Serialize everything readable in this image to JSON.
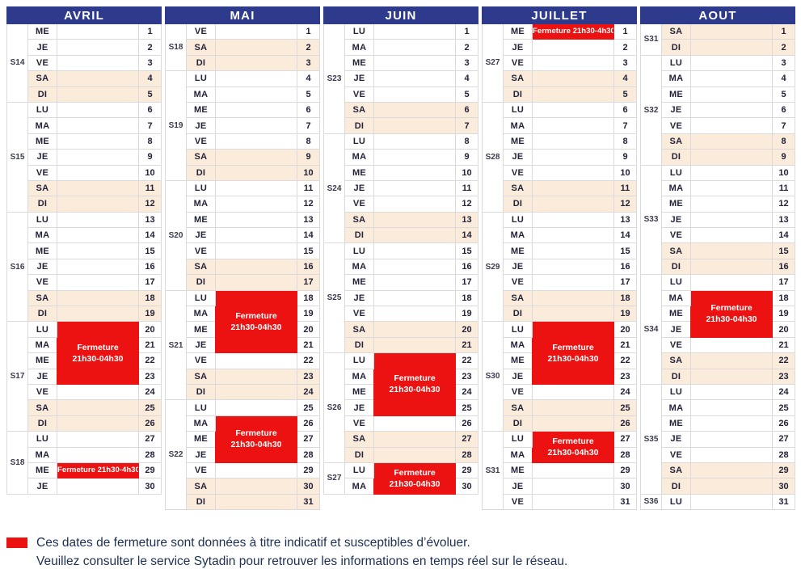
{
  "colors": {
    "header_bg": "#2E3A8C",
    "closure_red": "#EC1212",
    "weekend_bg": "#FBEBDB"
  },
  "months": [
    {
      "name": "AVRIL",
      "weeks": [
        {
          "label": "S14",
          "days": [
            {
              "dow": "ME",
              "num": 1
            },
            {
              "dow": "JE",
              "num": 2
            },
            {
              "dow": "VE",
              "num": 3
            },
            {
              "dow": "SA",
              "num": 4
            },
            {
              "dow": "DI",
              "num": 5
            }
          ]
        },
        {
          "label": "S15",
          "days": [
            {
              "dow": "LU",
              "num": 6
            },
            {
              "dow": "MA",
              "num": 7
            },
            {
              "dow": "ME",
              "num": 8
            },
            {
              "dow": "JE",
              "num": 9
            },
            {
              "dow": "VE",
              "num": 10
            },
            {
              "dow": "SA",
              "num": 11
            },
            {
              "dow": "DI",
              "num": 12
            }
          ]
        },
        {
          "label": "S16",
          "days": [
            {
              "dow": "LU",
              "num": 13
            },
            {
              "dow": "MA",
              "num": 14
            },
            {
              "dow": "ME",
              "num": 15
            },
            {
              "dow": "JE",
              "num": 16
            },
            {
              "dow": "VE",
              "num": 17
            },
            {
              "dow": "SA",
              "num": 18
            },
            {
              "dow": "DI",
              "num": 19
            }
          ]
        },
        {
          "label": "S17",
          "days": [
            {
              "dow": "LU",
              "num": 20
            },
            {
              "dow": "MA",
              "num": 21
            },
            {
              "dow": "ME",
              "num": 22
            },
            {
              "dow": "JE",
              "num": 23
            },
            {
              "dow": "VE",
              "num": 24
            },
            {
              "dow": "SA",
              "num": 25
            },
            {
              "dow": "DI",
              "num": 26
            }
          ]
        },
        {
          "label": "S18",
          "days": [
            {
              "dow": "LU",
              "num": 27
            },
            {
              "dow": "MA",
              "num": 28
            },
            {
              "dow": "ME",
              "num": 29
            },
            {
              "dow": "JE",
              "num": 30
            }
          ]
        }
      ],
      "closures": [
        {
          "start": 20,
          "end": 23,
          "label": "Fermeture\n21h30-04h30"
        },
        {
          "start": 29,
          "end": 29,
          "label": "Fermeture 21h30-4h30"
        }
      ]
    },
    {
      "name": "MAI",
      "weeks": [
        {
          "label": "S18",
          "days": [
            {
              "dow": "VE",
              "num": 1
            },
            {
              "dow": "SA",
              "num": 2
            },
            {
              "dow": "DI",
              "num": 3
            }
          ]
        },
        {
          "label": "S19",
          "days": [
            {
              "dow": "LU",
              "num": 4
            },
            {
              "dow": "MA",
              "num": 5
            },
            {
              "dow": "ME",
              "num": 6
            },
            {
              "dow": "JE",
              "num": 7
            },
            {
              "dow": "VE",
              "num": 8
            },
            {
              "dow": "SA",
              "num": 9
            },
            {
              "dow": "DI",
              "num": 10
            }
          ]
        },
        {
          "label": "S20",
          "days": [
            {
              "dow": "LU",
              "num": 11
            },
            {
              "dow": "MA",
              "num": 12
            },
            {
              "dow": "ME",
              "num": 13
            },
            {
              "dow": "JE",
              "num": 14
            },
            {
              "dow": "VE",
              "num": 15
            },
            {
              "dow": "SA",
              "num": 16
            },
            {
              "dow": "DI",
              "num": 17
            }
          ]
        },
        {
          "label": "S21",
          "days": [
            {
              "dow": "LU",
              "num": 18
            },
            {
              "dow": "MA",
              "num": 19
            },
            {
              "dow": "ME",
              "num": 20
            },
            {
              "dow": "JE",
              "num": 21
            },
            {
              "dow": "VE",
              "num": 22
            },
            {
              "dow": "SA",
              "num": 23
            },
            {
              "dow": "DI",
              "num": 24
            }
          ]
        },
        {
          "label": "S22",
          "days": [
            {
              "dow": "LU",
              "num": 25
            },
            {
              "dow": "MA",
              "num": 26
            },
            {
              "dow": "ME",
              "num": 27
            },
            {
              "dow": "JE",
              "num": 28
            },
            {
              "dow": "VE",
              "num": 29
            },
            {
              "dow": "SA",
              "num": 30
            },
            {
              "dow": "DI",
              "num": 31
            }
          ]
        }
      ],
      "closures": [
        {
          "start": 18,
          "end": 21,
          "label": "Fermeture\n21h30-04h30"
        },
        {
          "start": 26,
          "end": 28,
          "label": "Fermeture\n21h30-04h30"
        }
      ]
    },
    {
      "name": "JUIN",
      "weeks": [
        {
          "label": "S23",
          "days": [
            {
              "dow": "LU",
              "num": 1
            },
            {
              "dow": "MA",
              "num": 2
            },
            {
              "dow": "ME",
              "num": 3
            },
            {
              "dow": "JE",
              "num": 4
            },
            {
              "dow": "VE",
              "num": 5
            },
            {
              "dow": "SA",
              "num": 6
            },
            {
              "dow": "DI",
              "num": 7
            }
          ]
        },
        {
          "label": "S24",
          "days": [
            {
              "dow": "LU",
              "num": 8
            },
            {
              "dow": "MA",
              "num": 9
            },
            {
              "dow": "ME",
              "num": 10
            },
            {
              "dow": "JE",
              "num": 11
            },
            {
              "dow": "VE",
              "num": 12
            },
            {
              "dow": "SA",
              "num": 13
            },
            {
              "dow": "DI",
              "num": 14
            }
          ]
        },
        {
          "label": "S25",
          "days": [
            {
              "dow": "LU",
              "num": 15
            },
            {
              "dow": "MA",
              "num": 16
            },
            {
              "dow": "ME",
              "num": 17
            },
            {
              "dow": "JE",
              "num": 18
            },
            {
              "dow": "VE",
              "num": 19
            },
            {
              "dow": "SA",
              "num": 20
            },
            {
              "dow": "DI",
              "num": 21
            }
          ]
        },
        {
          "label": "S26",
          "days": [
            {
              "dow": "LU",
              "num": 22
            },
            {
              "dow": "MA",
              "num": 23
            },
            {
              "dow": "ME",
              "num": 24
            },
            {
              "dow": "JE",
              "num": 25
            },
            {
              "dow": "VE",
              "num": 26
            },
            {
              "dow": "SA",
              "num": 27
            },
            {
              "dow": "DI",
              "num": 28
            }
          ]
        },
        {
          "label": "S27",
          "days": [
            {
              "dow": "LU",
              "num": 29
            },
            {
              "dow": "MA",
              "num": 30
            }
          ]
        }
      ],
      "closures": [
        {
          "start": 22,
          "end": 25,
          "label": "Fermeture\n21h30-04h30"
        },
        {
          "start": 29,
          "end": 30,
          "label": "Fermeture\n21h30-04h30"
        }
      ]
    },
    {
      "name": "JUILLET",
      "weeks": [
        {
          "label": "S27",
          "days": [
            {
              "dow": "ME",
              "num": 1
            },
            {
              "dow": "JE",
              "num": 2
            },
            {
              "dow": "VE",
              "num": 3
            },
            {
              "dow": "SA",
              "num": 4
            },
            {
              "dow": "DI",
              "num": 5
            }
          ]
        },
        {
          "label": "S28",
          "days": [
            {
              "dow": "LU",
              "num": 6
            },
            {
              "dow": "MA",
              "num": 7
            },
            {
              "dow": "ME",
              "num": 8
            },
            {
              "dow": "JE",
              "num": 9
            },
            {
              "dow": "VE",
              "num": 10
            },
            {
              "dow": "SA",
              "num": 11
            },
            {
              "dow": "DI",
              "num": 12
            }
          ]
        },
        {
          "label": "S29",
          "days": [
            {
              "dow": "LU",
              "num": 13
            },
            {
              "dow": "MA",
              "num": 14
            },
            {
              "dow": "ME",
              "num": 15
            },
            {
              "dow": "JE",
              "num": 16
            },
            {
              "dow": "VE",
              "num": 17
            },
            {
              "dow": "SA",
              "num": 18
            },
            {
              "dow": "DI",
              "num": 19
            }
          ]
        },
        {
          "label": "S30",
          "days": [
            {
              "dow": "LU",
              "num": 20
            },
            {
              "dow": "MA",
              "num": 21
            },
            {
              "dow": "ME",
              "num": 22
            },
            {
              "dow": "JE",
              "num": 23
            },
            {
              "dow": "VE",
              "num": 24
            },
            {
              "dow": "SA",
              "num": 25
            },
            {
              "dow": "DI",
              "num": 26
            }
          ]
        },
        {
          "label": "S31",
          "days": [
            {
              "dow": "LU",
              "num": 27
            },
            {
              "dow": "MA",
              "num": 28
            },
            {
              "dow": "ME",
              "num": 29
            },
            {
              "dow": "JE",
              "num": 30
            },
            {
              "dow": "VE",
              "num": 31
            }
          ]
        }
      ],
      "closures": [
        {
          "start": 1,
          "end": 1,
          "label": "Fermeture 21h30-4h30"
        },
        {
          "start": 20,
          "end": 23,
          "label": "Fermeture\n21h30-04h30"
        },
        {
          "start": 27,
          "end": 28,
          "label": "Fermeture\n21h30-04h30"
        }
      ]
    },
    {
      "name": "AOUT",
      "weeks": [
        {
          "label": "S31",
          "days": [
            {
              "dow": "SA",
              "num": 1
            },
            {
              "dow": "DI",
              "num": 2
            }
          ]
        },
        {
          "label": "S32",
          "days": [
            {
              "dow": "LU",
              "num": 3
            },
            {
              "dow": "MA",
              "num": 4
            },
            {
              "dow": "ME",
              "num": 5
            },
            {
              "dow": "JE",
              "num": 6
            },
            {
              "dow": "VE",
              "num": 7
            },
            {
              "dow": "SA",
              "num": 8
            },
            {
              "dow": "DI",
              "num": 9
            }
          ]
        },
        {
          "label": "S33",
          "days": [
            {
              "dow": "LU",
              "num": 10
            },
            {
              "dow": "MA",
              "num": 11
            },
            {
              "dow": "ME",
              "num": 12
            },
            {
              "dow": "JE",
              "num": 13
            },
            {
              "dow": "VE",
              "num": 14
            },
            {
              "dow": "SA",
              "num": 15
            },
            {
              "dow": "DI",
              "num": 16
            }
          ]
        },
        {
          "label": "S34",
          "days": [
            {
              "dow": "LU",
              "num": 17
            },
            {
              "dow": "MA",
              "num": 18
            },
            {
              "dow": "ME",
              "num": 19
            },
            {
              "dow": "JE",
              "num": 20
            },
            {
              "dow": "VE",
              "num": 21
            },
            {
              "dow": "SA",
              "num": 22
            },
            {
              "dow": "DI",
              "num": 23
            }
          ]
        },
        {
          "label": "S35",
          "days": [
            {
              "dow": "LU",
              "num": 24
            },
            {
              "dow": "MA",
              "num": 25
            },
            {
              "dow": "ME",
              "num": 26
            },
            {
              "dow": "JE",
              "num": 27
            },
            {
              "dow": "VE",
              "num": 28
            },
            {
              "dow": "SA",
              "num": 29
            },
            {
              "dow": "DI",
              "num": 30
            }
          ]
        },
        {
          "label": "S36",
          "days": [
            {
              "dow": "LU",
              "num": 31
            }
          ]
        }
      ],
      "closures": [
        {
          "start": 18,
          "end": 20,
          "label": "Fermeture\n21h30-04h30"
        }
      ]
    }
  ],
  "footer": {
    "line1": "Ces dates de fermeture sont données à titre indicatif et susceptibles d’évoluer.",
    "line2": "Veuillez consulter le service Sytadin pour retrouver les informations en temps réel sur le réseau."
  }
}
